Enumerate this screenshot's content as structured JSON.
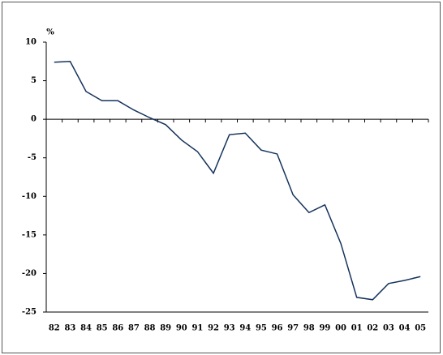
{
  "chart_data": {
    "type": "line",
    "y_label": "%",
    "categories": [
      "82",
      "83",
      "84",
      "85",
      "86",
      "87",
      "88",
      "89",
      "90",
      "91",
      "92",
      "93",
      "94",
      "95",
      "96",
      "97",
      "98",
      "99",
      "00",
      "01",
      "02",
      "03",
      "04",
      "05"
    ],
    "values": [
      7.4,
      7.5,
      3.6,
      2.4,
      2.4,
      1.2,
      0.2,
      -0.7,
      -2.7,
      -4.2,
      -7.0,
      -2.0,
      -1.8,
      -4.0,
      -4.5,
      -9.8,
      -12.1,
      -11.1,
      -16.1,
      -23.1,
      -23.4,
      -21.3,
      -20.9,
      -20.4
    ],
    "color": "#14325c",
    "ylim": [
      -25,
      10
    ],
    "yticks": [
      -25,
      -20,
      -15,
      -10,
      -5,
      0,
      5,
      10
    ]
  }
}
